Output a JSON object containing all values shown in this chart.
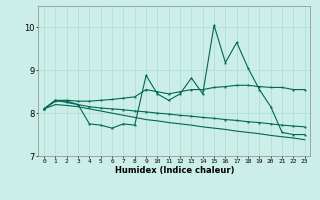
{
  "xlabel": "Humidex (Indice chaleur)",
  "bg_color": "#cceee8",
  "grid_color": "#aaddcc",
  "line_color": "#006655",
  "x": [
    0,
    1,
    2,
    3,
    4,
    5,
    6,
    7,
    8,
    9,
    10,
    11,
    12,
    13,
    14,
    15,
    16,
    17,
    18,
    19,
    20,
    21,
    22,
    23
  ],
  "series_jagged": [
    8.1,
    8.3,
    8.25,
    8.2,
    7.75,
    7.72,
    7.65,
    7.75,
    7.72,
    8.88,
    8.45,
    8.3,
    8.45,
    8.82,
    8.45,
    10.05,
    9.18,
    9.65,
    9.05,
    8.55,
    8.15,
    7.55,
    7.5,
    7.5
  ],
  "series_upper": [
    8.1,
    8.3,
    8.3,
    8.28,
    8.28,
    8.3,
    8.32,
    8.35,
    8.38,
    8.55,
    8.5,
    8.45,
    8.5,
    8.55,
    8.55,
    8.6,
    8.62,
    8.65,
    8.65,
    8.62,
    8.6,
    8.6,
    8.55,
    8.55
  ],
  "series_mid": [
    8.1,
    8.28,
    8.28,
    8.2,
    8.15,
    8.12,
    8.1,
    8.08,
    8.05,
    8.03,
    8.0,
    7.98,
    7.95,
    7.93,
    7.9,
    7.88,
    7.85,
    7.83,
    7.8,
    7.78,
    7.75,
    7.72,
    7.7,
    7.68
  ],
  "series_lower": [
    8.1,
    8.2,
    8.18,
    8.15,
    8.1,
    8.05,
    8.0,
    7.95,
    7.9,
    7.85,
    7.82,
    7.78,
    7.75,
    7.72,
    7.68,
    7.65,
    7.62,
    7.58,
    7.55,
    7.52,
    7.48,
    7.45,
    7.42,
    7.38
  ],
  "ylim": [
    7.0,
    10.5
  ],
  "yticks": [
    7,
    8,
    9,
    10
  ],
  "xlim": [
    -0.5,
    23.5
  ]
}
